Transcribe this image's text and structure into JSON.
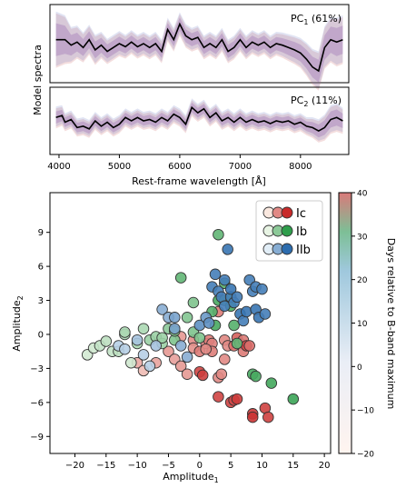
{
  "chart_data": [
    {
      "type": "line",
      "panel": "PC1",
      "label": "PC",
      "label_sub": "1",
      "label_pct": " (61%)",
      "ylabel": "Model spectra",
      "x": [
        3950,
        4100,
        4200,
        4300,
        4400,
        4500,
        4600,
        4700,
        4800,
        4900,
        5000,
        5100,
        5200,
        5300,
        5400,
        5500,
        5600,
        5700,
        5800,
        5900,
        6000,
        6100,
        6200,
        6300,
        6400,
        6500,
        6600,
        6700,
        6800,
        6900,
        7000,
        7100,
        7200,
        7300,
        7400,
        7500,
        7600,
        7700,
        7800,
        7900,
        8000,
        8100,
        8200,
        8300,
        8400,
        8500,
        8600,
        8700
      ],
      "y": [
        0.55,
        0.55,
        0.48,
        0.52,
        0.45,
        0.55,
        0.42,
        0.48,
        0.4,
        0.45,
        0.5,
        0.46,
        0.52,
        0.46,
        0.5,
        0.45,
        0.5,
        0.4,
        0.68,
        0.55,
        0.75,
        0.6,
        0.55,
        0.58,
        0.45,
        0.5,
        0.45,
        0.55,
        0.4,
        0.45,
        0.55,
        0.45,
        0.52,
        0.48,
        0.52,
        0.45,
        0.5,
        0.48,
        0.45,
        0.42,
        0.38,
        0.3,
        0.2,
        0.15,
        0.45,
        0.55,
        0.52,
        0.55
      ],
      "spread": [
        0.35,
        0.3,
        0.22,
        0.2,
        0.18,
        0.18,
        0.18,
        0.16,
        0.15,
        0.15,
        0.15,
        0.14,
        0.14,
        0.14,
        0.14,
        0.14,
        0.14,
        0.14,
        0.14,
        0.14,
        0.14,
        0.14,
        0.14,
        0.14,
        0.14,
        0.14,
        0.14,
        0.14,
        0.14,
        0.14,
        0.14,
        0.14,
        0.14,
        0.14,
        0.14,
        0.14,
        0.14,
        0.15,
        0.16,
        0.17,
        0.18,
        0.2,
        0.22,
        0.24,
        0.26,
        0.28,
        0.3,
        0.3
      ]
    },
    {
      "type": "line",
      "panel": "PC2",
      "label": "PC",
      "label_sub": "2",
      "label_pct": " (11%)",
      "xlabel": "Rest-frame wavelength [Å]",
      "xticks": [
        4000,
        5000,
        6000,
        7000,
        8000
      ],
      "xlim": [
        3850,
        8800
      ],
      "x": [
        3950,
        4050,
        4100,
        4200,
        4300,
        4400,
        4500,
        4600,
        4700,
        4800,
        4900,
        5000,
        5100,
        5200,
        5300,
        5400,
        5500,
        5600,
        5700,
        5800,
        5900,
        6000,
        6100,
        6200,
        6300,
        6400,
        6500,
        6600,
        6700,
        6800,
        6900,
        7000,
        7100,
        7200,
        7300,
        7400,
        7500,
        7600,
        7700,
        7800,
        7900,
        8000,
        8100,
        8200,
        8300,
        8400,
        8500,
        8600,
        8700
      ],
      "y": [
        0.55,
        0.58,
        0.48,
        0.52,
        0.4,
        0.42,
        0.38,
        0.5,
        0.42,
        0.48,
        0.4,
        0.45,
        0.55,
        0.5,
        0.55,
        0.5,
        0.52,
        0.48,
        0.55,
        0.5,
        0.6,
        0.55,
        0.45,
        0.7,
        0.62,
        0.68,
        0.55,
        0.62,
        0.5,
        0.55,
        0.48,
        0.55,
        0.48,
        0.52,
        0.48,
        0.5,
        0.46,
        0.5,
        0.48,
        0.5,
        0.45,
        0.48,
        0.42,
        0.4,
        0.35,
        0.4,
        0.52,
        0.55,
        0.5
      ],
      "spread": [
        0.15,
        0.14,
        0.12,
        0.12,
        0.12,
        0.12,
        0.12,
        0.12,
        0.12,
        0.12,
        0.12,
        0.12,
        0.12,
        0.12,
        0.12,
        0.12,
        0.12,
        0.12,
        0.12,
        0.12,
        0.12,
        0.12,
        0.12,
        0.12,
        0.12,
        0.12,
        0.12,
        0.12,
        0.12,
        0.12,
        0.12,
        0.12,
        0.12,
        0.12,
        0.12,
        0.12,
        0.12,
        0.12,
        0.12,
        0.12,
        0.12,
        0.12,
        0.12,
        0.14,
        0.16,
        0.18,
        0.2,
        0.2,
        0.18
      ]
    },
    {
      "type": "scatter",
      "xlabel": "Amplitude",
      "xlabel_sub": "1",
      "ylabel": "Amplitude",
      "ylabel_sub": "2",
      "xlim": [
        -24,
        21
      ],
      "ylim": [
        -10.5,
        12.5
      ],
      "xticks": [
        -20,
        -15,
        -10,
        -5,
        0,
        5,
        10,
        15,
        20
      ],
      "yticks": [
        -9,
        -6,
        -3,
        0,
        3,
        6,
        9
      ],
      "colorbar": {
        "label": "Days relative to B-band maximum",
        "range": [
          -20,
          40
        ],
        "ticks": [
          -20,
          -10,
          0,
          10,
          20,
          30,
          40
        ]
      },
      "legend": {
        "position": "top-right"
      },
      "series": [
        {
          "name": "Ic",
          "color_early": "#fae8df",
          "color_late": "#c82a2a",
          "points": [
            [
              -10,
              -2.5,
              -5
            ],
            [
              -9,
              -3.2,
              -10
            ],
            [
              -7,
              -2.5,
              -3
            ],
            [
              -5,
              -1.5,
              0
            ],
            [
              -4,
              -2.2,
              -2
            ],
            [
              -3,
              -2.8,
              0
            ],
            [
              -2,
              -3.5,
              0
            ],
            [
              -1,
              -0.5,
              4
            ],
            [
              -1,
              -1.2,
              3
            ],
            [
              0,
              -1.5,
              10
            ],
            [
              0,
              -3.3,
              30
            ],
            [
              0.5,
              -3.6,
              32
            ],
            [
              1,
              -0.8,
              8
            ],
            [
              1.5,
              -0.5,
              10
            ],
            [
              2,
              -0.8,
              8
            ],
            [
              2,
              -1.5,
              9
            ],
            [
              3,
              -3.8,
              5
            ],
            [
              3,
              -5.5,
              30
            ],
            [
              3.5,
              -3.5,
              5
            ],
            [
              4,
              -0.5,
              6
            ],
            [
              4,
              -2.2,
              5
            ],
            [
              4.5,
              -1.0,
              5
            ],
            [
              5,
              -6.0,
              30
            ],
            [
              5.5,
              -1.0,
              15
            ],
            [
              5.5,
              -5.8,
              28
            ],
            [
              6,
              -0.3,
              20
            ],
            [
              6,
              -5.7,
              33
            ],
            [
              6.5,
              -0.8,
              7
            ],
            [
              7,
              -1.5,
              10
            ],
            [
              7,
              -0.5,
              10
            ],
            [
              7.5,
              -1.0,
              30
            ],
            [
              8,
              -1.0,
              14
            ],
            [
              8.5,
              -7.0,
              35
            ],
            [
              8.5,
              -7.3,
              36
            ],
            [
              10.5,
              -6.5,
              31
            ],
            [
              11,
              -7.3,
              31
            ],
            [
              3,
              2.0,
              10
            ],
            [
              -3,
              -0.2,
              0
            ],
            [
              1,
              -1.3,
              5
            ]
          ]
        },
        {
          "name": "Ib",
          "color_early": "#e8f4e4",
          "color_late": "#2f9e4c",
          "points": [
            [
              -18,
              -1.8,
              -16
            ],
            [
              -17,
              -1.2,
              -15
            ],
            [
              -16,
              -1.0,
              -12
            ],
            [
              -15,
              -0.6,
              -10
            ],
            [
              -14,
              -1.5,
              -12
            ],
            [
              -12,
              0.0,
              -5
            ],
            [
              -12,
              0.2,
              -5
            ],
            [
              -11,
              -2.5,
              -15
            ],
            [
              -10,
              -0.8,
              -5
            ],
            [
              -9,
              0.5,
              -5
            ],
            [
              -8,
              -0.5,
              0
            ],
            [
              -7,
              -0.2,
              0
            ],
            [
              -6,
              -0.8,
              0
            ],
            [
              -5,
              0.5,
              5
            ],
            [
              -4,
              -0.5,
              10
            ],
            [
              -4,
              0.3,
              10
            ],
            [
              -3,
              5.0,
              20
            ],
            [
              -2,
              1.5,
              8
            ],
            [
              -1,
              0.2,
              10
            ],
            [
              0,
              -0.3,
              10
            ],
            [
              -1,
              2.8,
              10
            ],
            [
              2,
              2.0,
              25
            ],
            [
              2.5,
              0.8,
              30
            ],
            [
              3,
              3.0,
              30
            ],
            [
              3,
              8.8,
              20
            ],
            [
              4,
              3.0,
              20
            ],
            [
              4,
              4.5,
              25
            ],
            [
              5,
              3.3,
              25
            ],
            [
              5.5,
              0.8,
              25
            ],
            [
              6,
              -0.8,
              20
            ],
            [
              8.5,
              -3.5,
              30
            ],
            [
              9,
              -3.7,
              30
            ],
            [
              11.5,
              -4.3,
              32
            ],
            [
              15,
              -5.7,
              35
            ],
            [
              5,
              2.5,
              30
            ],
            [
              -6,
              -0.3,
              0
            ],
            [
              -13,
              -1.5,
              -10
            ]
          ]
        },
        {
          "name": "IIb",
          "color_early": "#e2eef7",
          "color_late": "#2c6cae",
          "points": [
            [
              -13,
              -1.0,
              -10
            ],
            [
              -12,
              -1.3,
              -10
            ],
            [
              -10,
              -0.5,
              -5
            ],
            [
              -9,
              -1.8,
              -10
            ],
            [
              -8,
              -2.8,
              -10
            ],
            [
              -7,
              -1.0,
              -5
            ],
            [
              -6,
              2.2,
              5
            ],
            [
              -5,
              1.5,
              5
            ],
            [
              -4,
              0.5,
              10
            ],
            [
              -4,
              1.5,
              10
            ],
            [
              -3,
              -1.0,
              5
            ],
            [
              -2,
              -2.0,
              5
            ],
            [
              0,
              0.8,
              20
            ],
            [
              1,
              1.5,
              15
            ],
            [
              2,
              4.2,
              30
            ],
            [
              2.5,
              5.3,
              30
            ],
            [
              3,
              3.8,
              30
            ],
            [
              3.5,
              3.3,
              30
            ],
            [
              4,
              2.5,
              30
            ],
            [
              4,
              4.8,
              30
            ],
            [
              4.5,
              7.5,
              35
            ],
            [
              5,
              3.3,
              30
            ],
            [
              5,
              4.0,
              35
            ],
            [
              5.5,
              2.8,
              30
            ],
            [
              6,
              3.3,
              30
            ],
            [
              6.5,
              1.8,
              35
            ],
            [
              7,
              1.2,
              30
            ],
            [
              7.5,
              2.0,
              35
            ],
            [
              8,
              4.8,
              30
            ],
            [
              8.5,
              3.8,
              30
            ],
            [
              9,
              4.2,
              30
            ],
            [
              9,
              2.2,
              35
            ],
            [
              9.5,
              1.5,
              35
            ],
            [
              10.5,
              1.8,
              30
            ],
            [
              10,
              4.0,
              30
            ],
            [
              1.5,
              1.0,
              20
            ]
          ]
        }
      ]
    }
  ]
}
